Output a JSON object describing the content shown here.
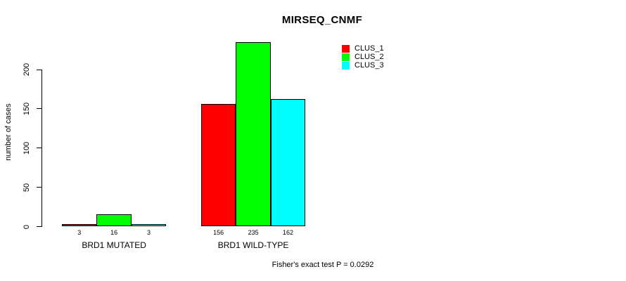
{
  "chart_data": {
    "type": "bar",
    "title": "MIRSEQ_CNMF",
    "ylabel": "number of cases",
    "xlabel": "",
    "categories": [
      "BRD1 MUTATED",
      "BRD1 WILD-TYPE"
    ],
    "series": [
      {
        "name": "CLUS_1",
        "color": "#FF0000",
        "values": [
          3,
          156
        ]
      },
      {
        "name": "CLUS_2",
        "color": "#00FF00",
        "values": [
          16,
          235
        ]
      },
      {
        "name": "CLUS_3",
        "color": "#00FFFF",
        "values": [
          3,
          162
        ]
      }
    ],
    "y_ticks": [
      0,
      50,
      100,
      150,
      200
    ],
    "ylim": [
      0,
      240
    ],
    "bar_value_labels": [
      [
        "3",
        "16",
        "3"
      ],
      [
        "156",
        "235",
        "162"
      ]
    ],
    "legend_position": "top-right",
    "grid": false,
    "footnote": "Fisher's exact test P = 0.0292"
  },
  "colors": {
    "background": "#FFFFFF",
    "axis": "#000000",
    "text": "#000000",
    "clus_1": "#FF0000",
    "clus_2": "#00FF00",
    "clus_3": "#00FFFF"
  }
}
